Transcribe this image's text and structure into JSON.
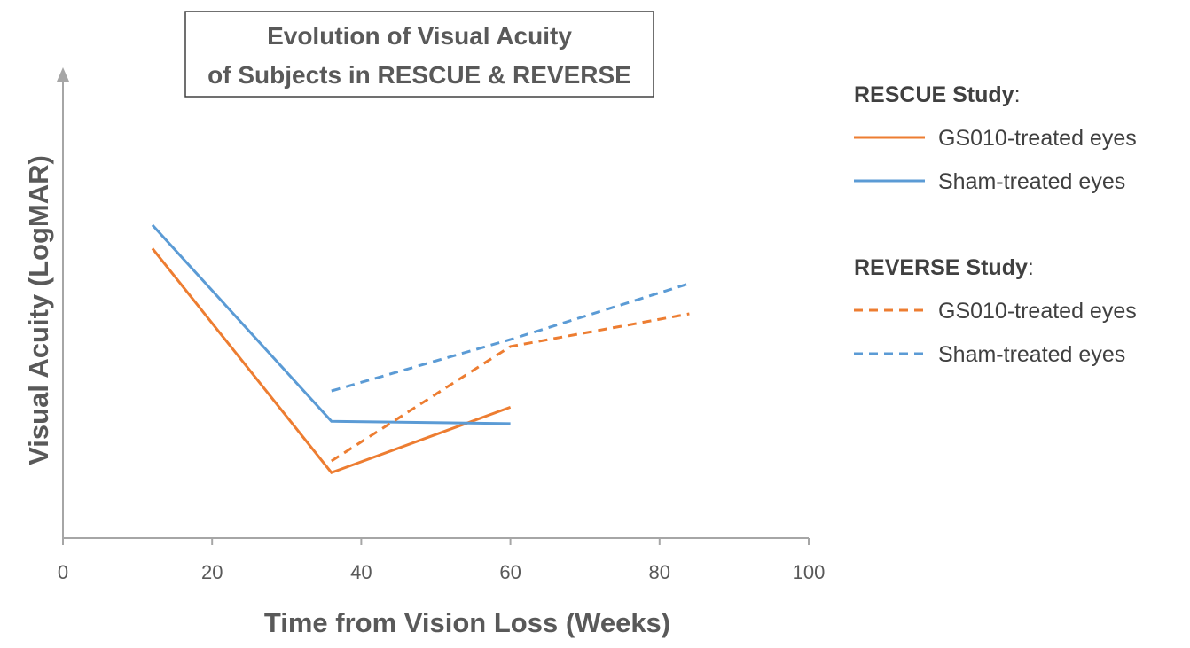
{
  "chart_data": {
    "type": "line",
    "title_lines": [
      "Evolution of Visual Acuity",
      "of Subjects in RESCUE & REVERSE"
    ],
    "xlabel": "Time from Vision Loss (Weeks)",
    "ylabel": "Visual Acuity (LogMAR)",
    "xlim": [
      0,
      100
    ],
    "x_ticks": [
      0,
      20,
      40,
      60,
      80,
      100
    ],
    "ylim": [
      0,
      1
    ],
    "y_ticks_shown": false,
    "grid": false,
    "legend_placement": "right",
    "legend_groups": [
      {
        "heading": "RESCUE Study",
        "heading_suffix": ":",
        "entries": [
          {
            "series_index": 0,
            "label": "GS010-treated eyes"
          },
          {
            "series_index": 1,
            "label": "Sham-treated eyes"
          }
        ]
      },
      {
        "heading": "REVERSE Study",
        "heading_suffix": ":",
        "entries": [
          {
            "series_index": 2,
            "label": "GS010-treated eyes"
          },
          {
            "series_index": 3,
            "label": "Sham-treated eyes"
          }
        ]
      }
    ],
    "series": [
      {
        "study": "RESCUE Study",
        "name": "GS010-treated eyes",
        "color": "#ED7D31",
        "dash": "solid",
        "points": [
          [
            12,
            0.62
          ],
          [
            36,
            0.14
          ],
          [
            60,
            0.28
          ]
        ]
      },
      {
        "study": "RESCUE Study",
        "name": "Sham-treated eyes",
        "color": "#5B9BD5",
        "dash": "solid",
        "points": [
          [
            12,
            0.67
          ],
          [
            36,
            0.25
          ],
          [
            60,
            0.245
          ]
        ]
      },
      {
        "study": "REVERSE Study",
        "name": "GS010-treated eyes",
        "color": "#ED7D31",
        "dash": "dashed",
        "points": [
          [
            36,
            0.165
          ],
          [
            60,
            0.41
          ],
          [
            84,
            0.48
          ]
        ]
      },
      {
        "study": "REVERSE Study",
        "name": "Sham-treated eyes",
        "color": "#5B9BD5",
        "dash": "dashed",
        "points": [
          [
            36,
            0.315
          ],
          [
            60,
            0.425
          ],
          [
            84,
            0.545
          ]
        ]
      }
    ]
  }
}
